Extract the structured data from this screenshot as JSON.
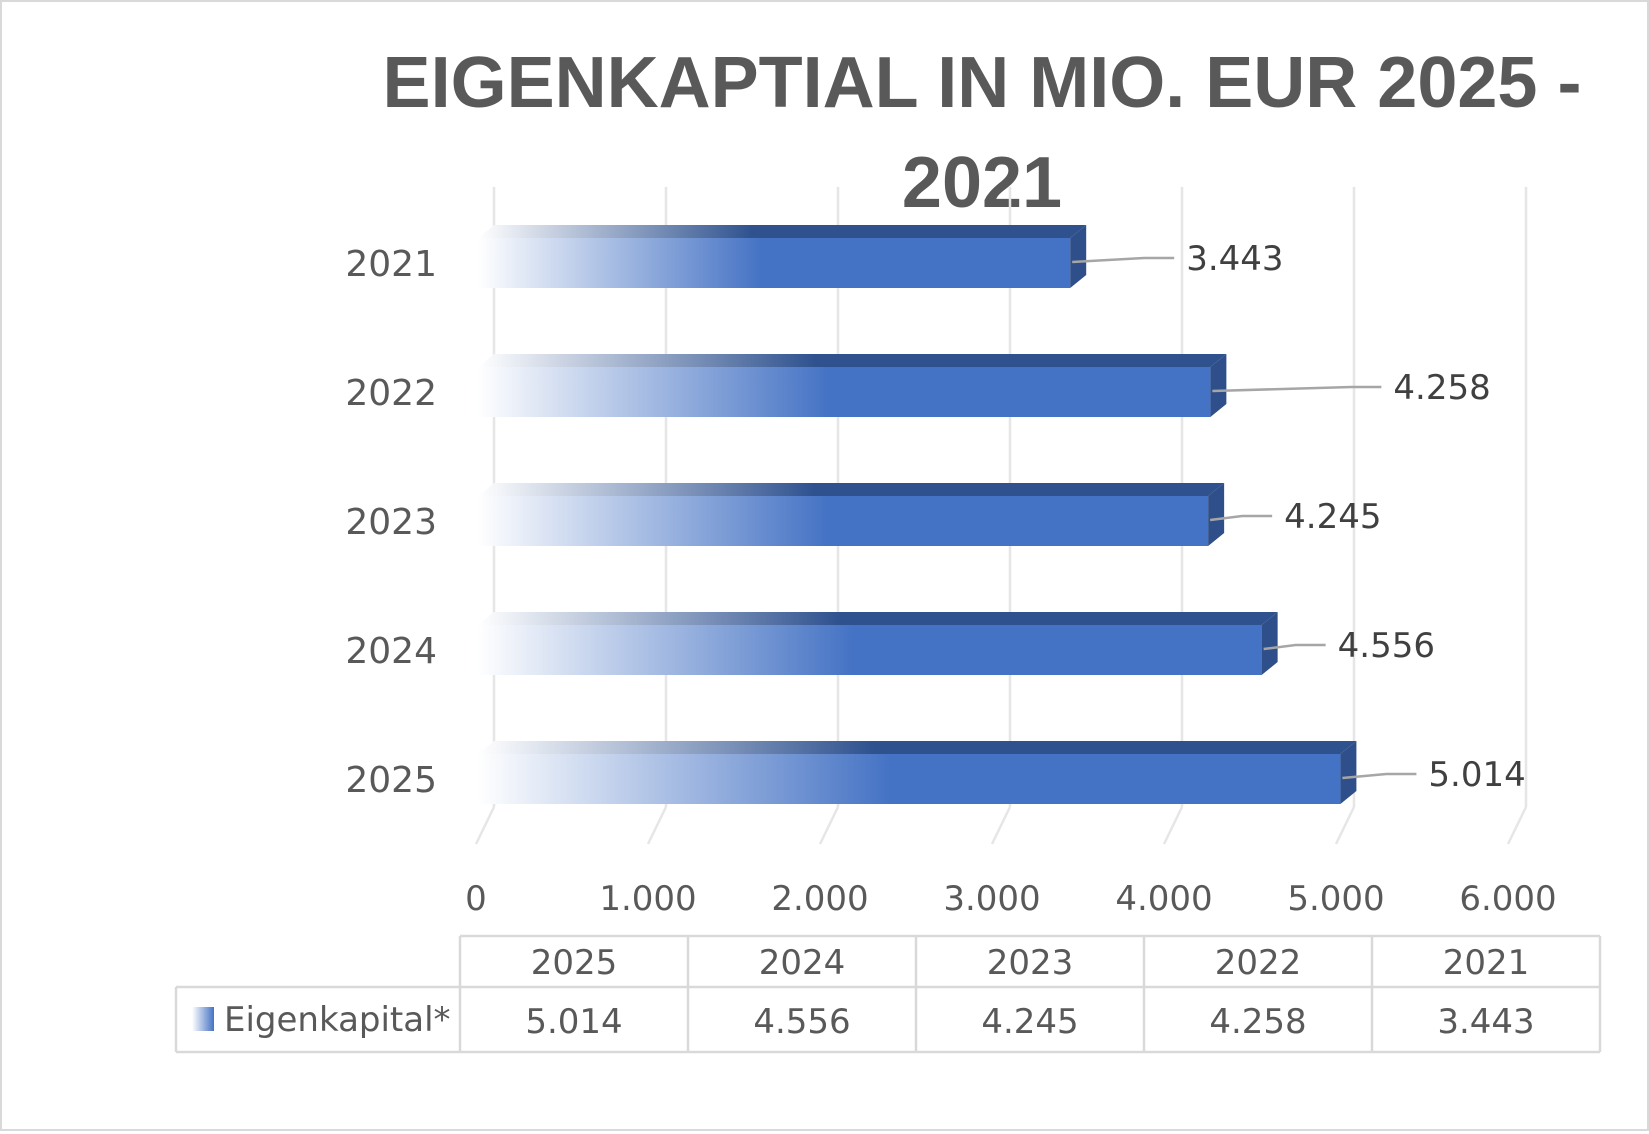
{
  "chart_data": {
    "type": "bar",
    "orientation": "horizontal",
    "title": "EIGENKAPTIAL IN MIO. EUR  2025 - 2021",
    "title_lines": [
      "EIGENKAPTIAL IN MIO. EUR  2025 -",
      "2021"
    ],
    "categories": [
      "2021",
      "2022",
      "2023",
      "2024",
      "2025"
    ],
    "series": [
      {
        "name": "Eigenkapital*",
        "values": [
          3443,
          4258,
          4245,
          4556,
          5014
        ]
      }
    ],
    "data_labels": [
      "3.443",
      "4.258",
      "4.245",
      "4.556",
      "5.014"
    ],
    "xlim": [
      0,
      6000
    ],
    "x_ticks": [
      "0",
      "1.000",
      "2.000",
      "3.000",
      "4.000",
      "5.000",
      "6.000"
    ],
    "grid": true,
    "style": "3d-bar-gradient",
    "data_table": {
      "columns": [
        "2025",
        "2024",
        "2023",
        "2022",
        "2021"
      ],
      "row_label": "Eigenkapital*",
      "values": [
        "5.014",
        "4.556",
        "4.245",
        "4.258",
        "3.443"
      ]
    }
  },
  "colors": {
    "bar": "#4472c4",
    "bar_top": "#2f528f",
    "bar_side": "#2f4f8a",
    "grid": "#e6e6e6",
    "text": "#595959",
    "leader_line": "#a6a6a6"
  }
}
